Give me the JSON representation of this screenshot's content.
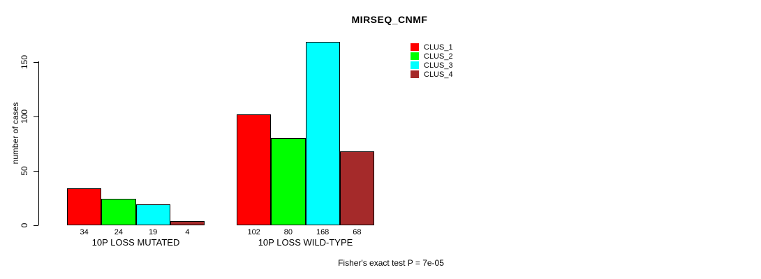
{
  "chart_data": {
    "type": "bar",
    "title": "MIRSEQ_CNMF",
    "xlabel": "",
    "ylabel": "number of cases",
    "yticks": [
      0,
      50,
      100,
      150
    ],
    "ylim": [
      0,
      170
    ],
    "grid": false,
    "legend_position": "top-right",
    "categories": [
      "10P LOSS MUTATED",
      "10P LOSS WILD-TYPE"
    ],
    "series": [
      {
        "name": "CLUS_1",
        "color": "#ff0000",
        "values": [
          34,
          102
        ]
      },
      {
        "name": "CLUS_2",
        "color": "#00ff00",
        "values": [
          24,
          80
        ]
      },
      {
        "name": "CLUS_3",
        "color": "#00ffff",
        "values": [
          19,
          168
        ]
      },
      {
        "name": "CLUS_4",
        "color": "#a52a2a",
        "values": [
          4,
          68
        ]
      }
    ],
    "bar_value_labels": [
      [
        34,
        24,
        19,
        4
      ],
      [
        102,
        80,
        168,
        68
      ]
    ],
    "annotation": "Fisher's exact test P = 7e-05"
  }
}
